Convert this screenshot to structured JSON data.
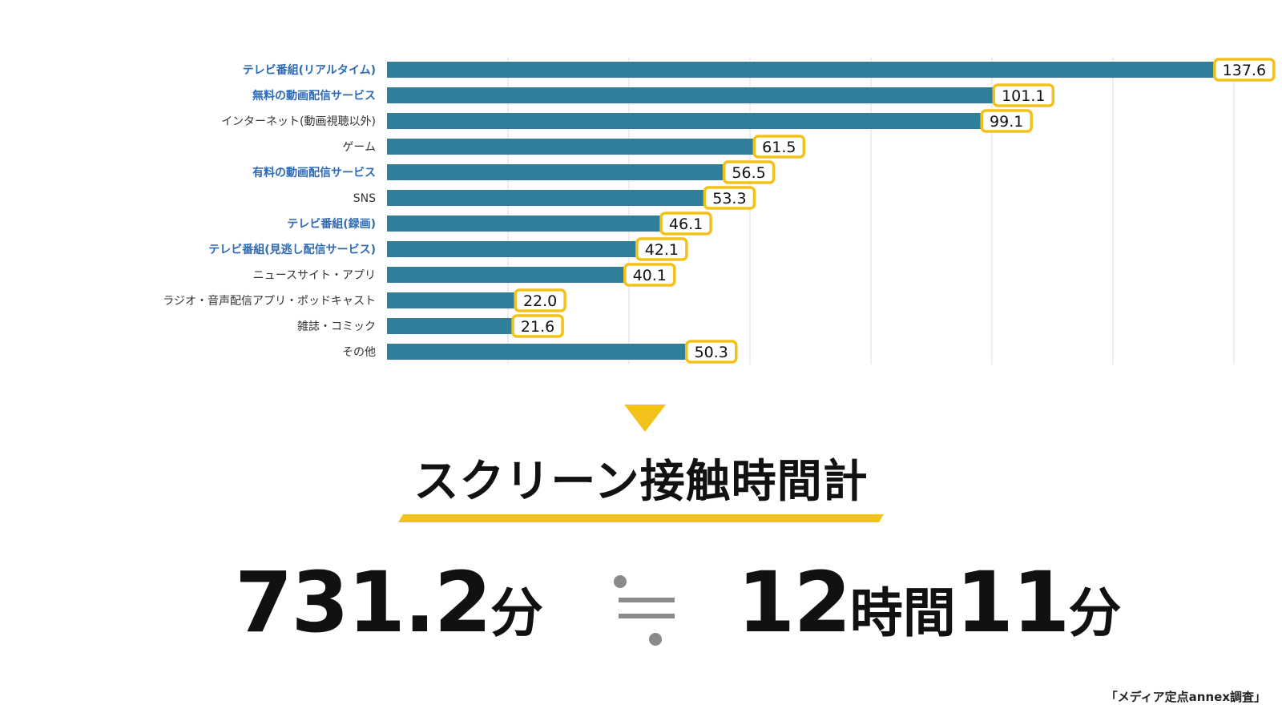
{
  "chart_data": {
    "type": "bar",
    "orientation": "horizontal",
    "categories": [
      "テレビ番組(リアルタイム)",
      "無料の動画配信サービス",
      "インターネット(動画視聴以外)",
      "ゲーム",
      "有料の動画配信サービス",
      "SNS",
      "テレビ番組(録画)",
      "テレビ番組(見逃し配信サービス)",
      "ニュースサイト・アプリ",
      "ラジオ・音声配信アプリ・ポッドキャスト",
      "雑誌・コミック",
      "その他"
    ],
    "values": [
      137.6,
      101.1,
      99.1,
      61.5,
      56.5,
      53.3,
      46.1,
      42.1,
      40.1,
      22.0,
      21.6,
      50.3
    ],
    "value_labels": [
      "137.6",
      "101.1",
      "99.1",
      "61.5",
      "56.5",
      "53.3",
      "46.1",
      "42.1",
      "40.1",
      "22.0",
      "21.6",
      "50.3"
    ],
    "highlighted": [
      true,
      true,
      false,
      false,
      true,
      false,
      true,
      true,
      false,
      false,
      false,
      false
    ],
    "xlim": [
      0,
      140
    ],
    "grid": true,
    "colors": {
      "bar": "#2f7f9c",
      "highlight_text": "#2e6bb5",
      "normal_text": "#333333",
      "label_border": "#f2c21b",
      "grid": "#dddddd"
    }
  },
  "heading": "スクリーン接触時間計",
  "total_minutes": {
    "number": "731.2",
    "unit": "分"
  },
  "total_hours": {
    "hours": "12",
    "hours_unit": "時間",
    "minutes": "11",
    "minutes_unit": "分"
  },
  "source": "「メディア定点annex調査」",
  "accent_color": "#f2c21b"
}
